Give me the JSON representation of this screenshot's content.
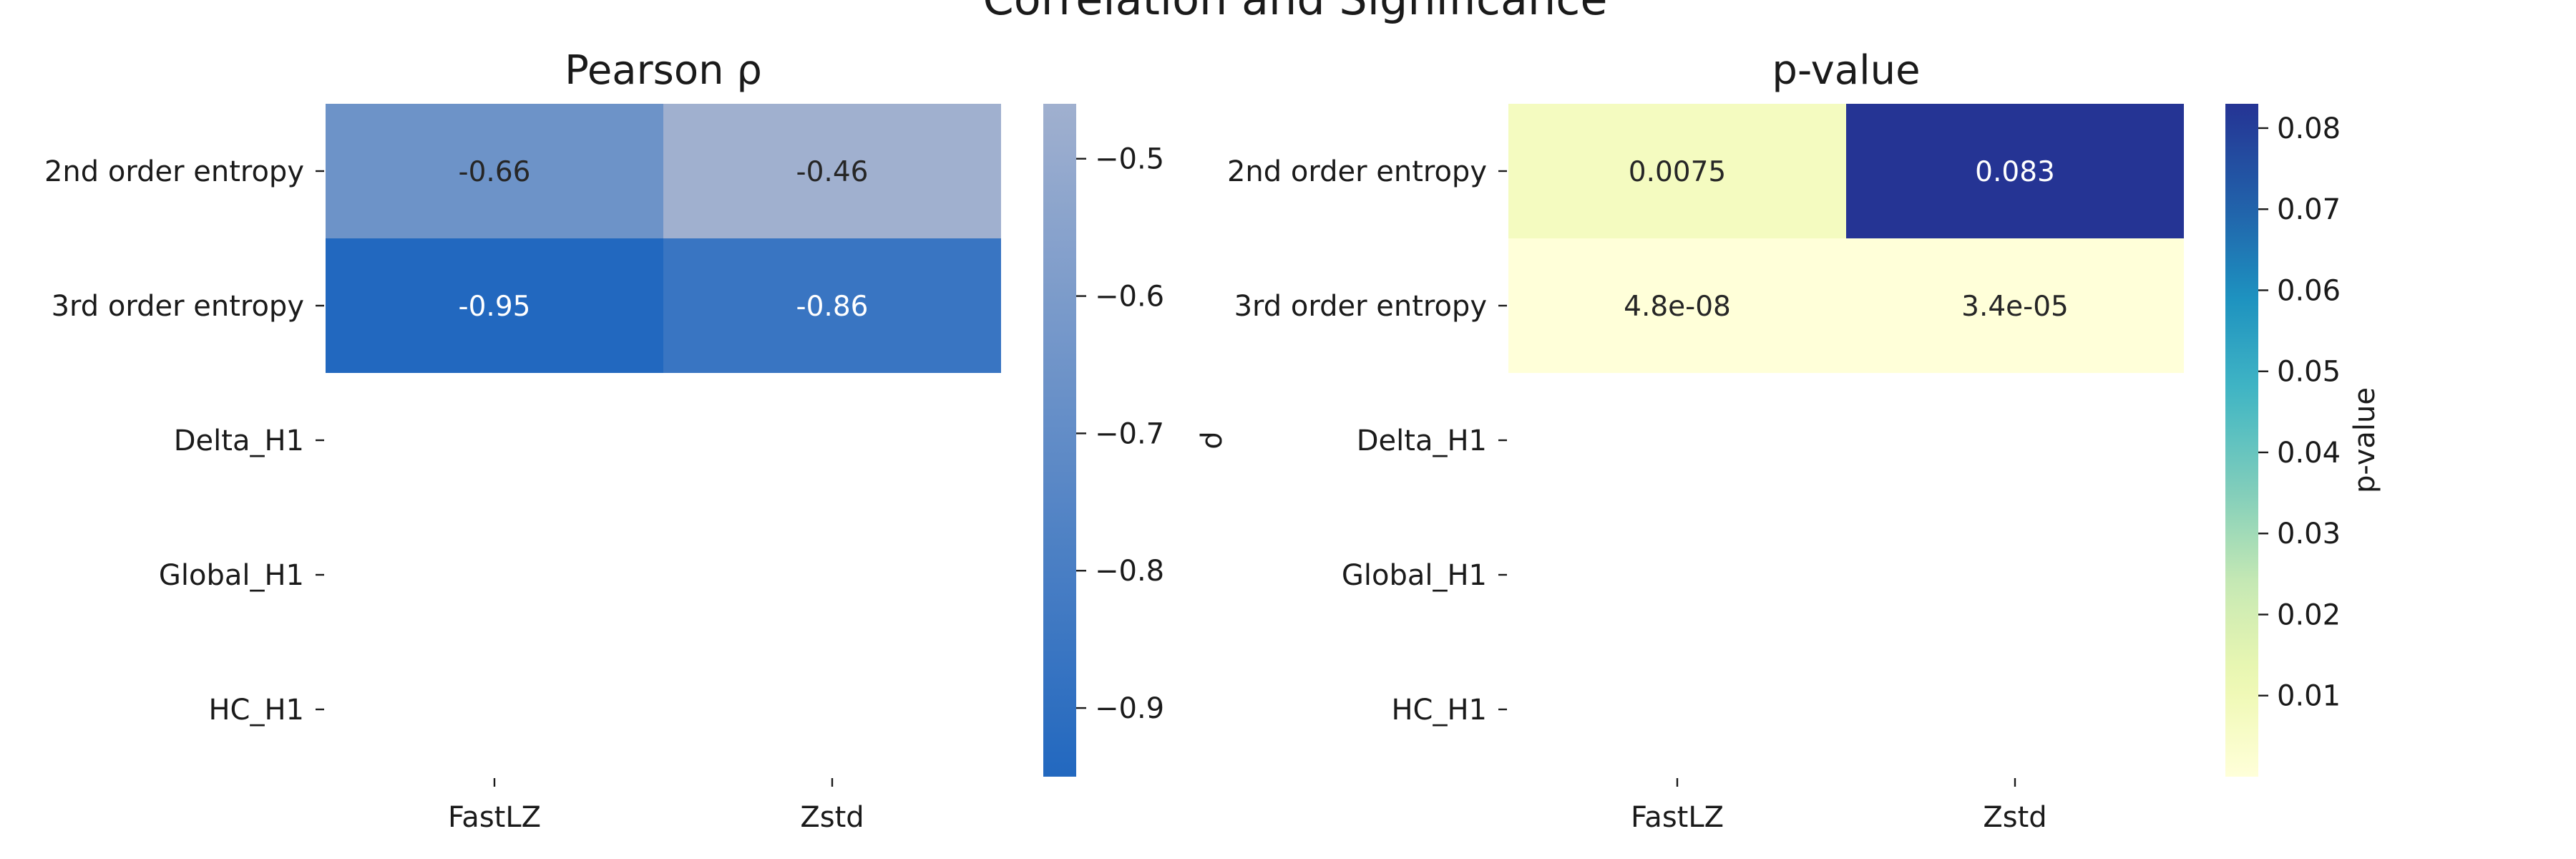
{
  "chart_data": {
    "type": "heatmap",
    "title": "Correlation and Significance",
    "rows": [
      "2nd order entropy",
      "3rd order entropy",
      "Delta_H1",
      "Global_H1",
      "HC_H1"
    ],
    "columns": [
      "FastLZ",
      "Zstd"
    ],
    "panels": [
      {
        "title": "Pearson ρ",
        "colorbar_label": "ρ",
        "values": [
          [
            -0.66,
            -0.46
          ],
          [
            -0.95,
            -0.86
          ],
          [
            null,
            null
          ],
          [
            null,
            null
          ],
          [
            null,
            null
          ]
        ],
        "labels": [
          [
            "-0.66",
            "-0.46"
          ],
          [
            "-0.95",
            "-0.86"
          ],
          [
            "",
            ""
          ],
          [
            "",
            ""
          ],
          [
            "",
            ""
          ]
        ],
        "vmin": -0.95,
        "vmax": -0.46,
        "colormap": [
          "#2268bf",
          "#a0b0cf"
        ],
        "colorbar_ticks": [
          -0.5,
          -0.6,
          -0.7,
          -0.8,
          -0.9
        ],
        "colorbar_tick_labels": [
          "−0.5",
          "−0.6",
          "−0.7",
          "−0.8",
          "−0.9"
        ]
      },
      {
        "title": "p-value",
        "colorbar_label": "p-value",
        "values": [
          [
            0.0075,
            0.083
          ],
          [
            4.8e-08,
            3.4e-05
          ],
          [
            null,
            null
          ],
          [
            null,
            null
          ],
          [
            null,
            null
          ]
        ],
        "labels": [
          [
            "0.0075",
            "0.083"
          ],
          [
            "4.8e-08",
            "3.4e-05"
          ],
          [
            "",
            ""
          ],
          [
            "",
            ""
          ],
          [
            "",
            ""
          ]
        ],
        "vmin": 0,
        "vmax": 0.083,
        "colormap": [
          "#ffffd9",
          "#edf8b1",
          "#c7e9b4",
          "#7fcdbb",
          "#41b6c4",
          "#1d91c0",
          "#225ea8",
          "#253494"
        ],
        "colorbar_ticks": [
          0.01,
          0.02,
          0.03,
          0.04,
          0.05,
          0.06,
          0.07,
          0.08
        ],
        "colorbar_tick_labels": [
          "0.01",
          "0.02",
          "0.03",
          "0.04",
          "0.05",
          "0.06",
          "0.07",
          "0.08"
        ]
      }
    ]
  }
}
